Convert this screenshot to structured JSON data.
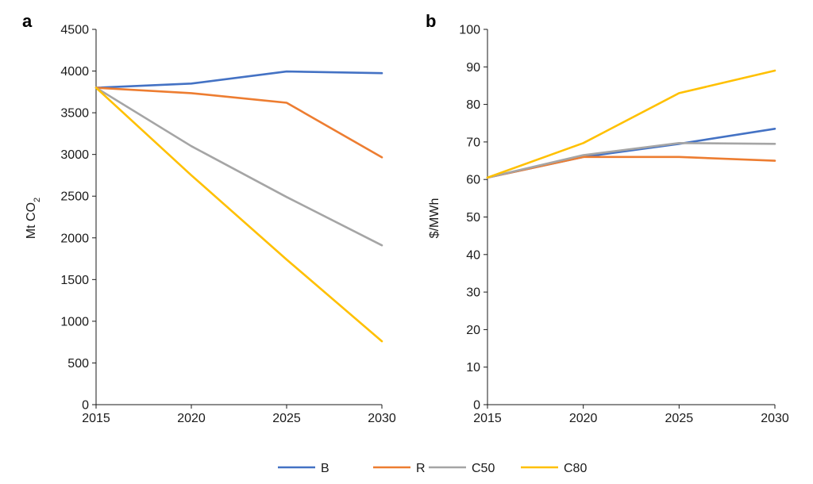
{
  "colors": {
    "B": "#4472c4",
    "R": "#ed7d31",
    "C50": "#a5a5a5",
    "C80": "#ffc000"
  },
  "chart_data": [
    {
      "type": "line",
      "panel": "a",
      "title": "",
      "xlabel": "",
      "ylabel": "Mt CO",
      "ylabel_sub": "2",
      "x": [
        2015,
        2020,
        2025,
        2030
      ],
      "x_ticks": [
        "2015",
        "2020",
        "2025",
        "2030"
      ],
      "ylim": [
        0,
        4500
      ],
      "y_ticks": [
        "0",
        "500",
        "1000",
        "1500",
        "2000",
        "2500",
        "3000",
        "3500",
        "4000",
        "4500"
      ],
      "grid": false,
      "series": [
        {
          "name": "B",
          "values": [
            3800,
            3850,
            3995,
            3975
          ]
        },
        {
          "name": "R",
          "values": [
            3800,
            3735,
            3620,
            2965
          ]
        },
        {
          "name": "C50",
          "values": [
            3800,
            3100,
            2490,
            1910
          ]
        },
        {
          "name": "C80",
          "values": [
            3800,
            2750,
            1740,
            760
          ]
        }
      ]
    },
    {
      "type": "line",
      "panel": "b",
      "title": "",
      "xlabel": "",
      "ylabel": "$/MWh",
      "x": [
        2015,
        2020,
        2025,
        2030
      ],
      "x_ticks": [
        "2015",
        "2020",
        "2025",
        "2030"
      ],
      "ylim": [
        0,
        100
      ],
      "y_ticks": [
        "0",
        "10",
        "20",
        "30",
        "40",
        "50",
        "60",
        "70",
        "80",
        "90",
        "100"
      ],
      "grid": false,
      "series": [
        {
          "name": "B",
          "values": [
            60.5,
            66.0,
            69.5,
            73.5
          ]
        },
        {
          "name": "R",
          "values": [
            60.5,
            66.0,
            66.0,
            65.0
          ]
        },
        {
          "name": "C50",
          "values": [
            60.5,
            66.5,
            69.7,
            69.5
          ]
        },
        {
          "name": "C80",
          "values": [
            60.5,
            69.7,
            83.0,
            89.0
          ]
        }
      ]
    }
  ],
  "legend": {
    "position": "bottom",
    "entries": [
      "B",
      "R",
      "C50",
      "C80"
    ]
  }
}
